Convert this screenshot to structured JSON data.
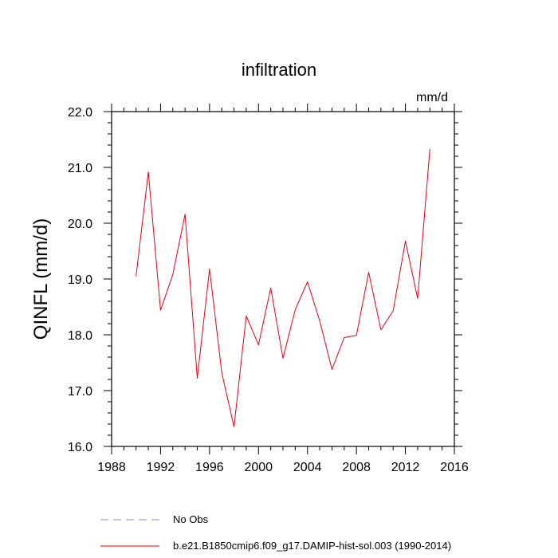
{
  "chart_data": {
    "type": "line",
    "title": "infiltration",
    "units_label": "mm/d",
    "ylabel": "QINFL  (mm/d)",
    "xlabel": "",
    "xlim": [
      1988,
      2016
    ],
    "ylim": [
      16.0,
      22.0
    ],
    "x_ticks": [
      1988,
      1992,
      1996,
      2000,
      2004,
      2008,
      2012,
      2016
    ],
    "x_tick_labels": [
      "1988",
      "1992",
      "1996",
      "2000",
      "2004",
      "2008",
      "2012",
      "2016"
    ],
    "y_ticks": [
      16,
      17,
      18,
      19,
      20,
      21,
      22
    ],
    "y_tick_labels": [
      "16.0",
      "17.0",
      "18.0",
      "19.0",
      "20.0",
      "21.0",
      "22.0"
    ],
    "grid": false,
    "legend_placement": "bottom",
    "series": [
      {
        "name": "b.e21.B1850cmip6.f09_g17.DAMIP-hist-sol.003 (1990-2014)",
        "color": "#e8000b",
        "style": "solid",
        "x": [
          1990,
          1991,
          1992,
          1993,
          1994,
          1995,
          1996,
          1997,
          1998,
          1999,
          2000,
          2001,
          2002,
          2003,
          2004,
          2005,
          2006,
          2007,
          2008,
          2009,
          2010,
          2011,
          2012,
          2013,
          2014
        ],
        "y": [
          19.05,
          20.92,
          18.44,
          19.08,
          20.16,
          17.22,
          19.18,
          17.32,
          16.35,
          18.34,
          17.82,
          18.84,
          17.58,
          18.45,
          18.95,
          18.25,
          17.38,
          17.95,
          17.99,
          19.12,
          18.09,
          18.43,
          19.68,
          18.65,
          21.33
        ]
      }
    ],
    "legend": [
      {
        "label": "No Obs",
        "color": "#8a8aff",
        "style": "dashed"
      },
      {
        "label": "b.e21.B1850cmip6.f09_g17.DAMIP-hist-sol.003 (1990-2014)",
        "color": "#e8000b",
        "style": "solid"
      }
    ]
  }
}
